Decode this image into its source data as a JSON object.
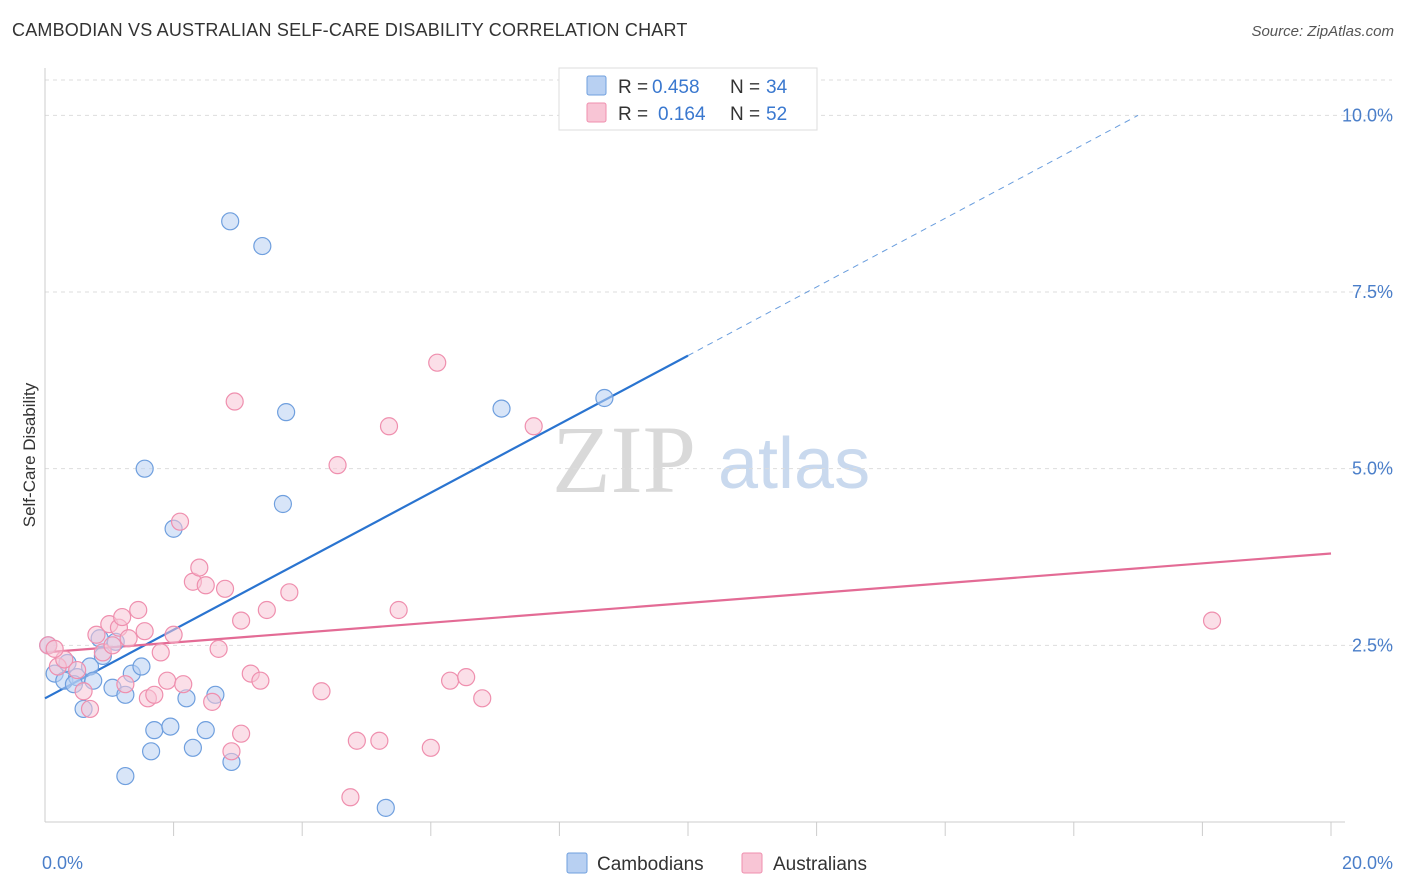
{
  "title": "CAMBODIAN VS AUSTRALIAN SELF-CARE DISABILITY CORRELATION CHART",
  "source": "Source: ZipAtlas.com",
  "watermark": {
    "part1": "ZIP",
    "part2": "atlas"
  },
  "chart_data": {
    "type": "scatter",
    "title": "CAMBODIAN VS AUSTRALIAN SELF-CARE DISABILITY CORRELATION CHART",
    "xlabel": "",
    "ylabel": "Self-Care Disability",
    "xlim": [
      0,
      20
    ],
    "ylim": [
      0,
      10.5
    ],
    "x_tick_labels": [
      {
        "value": 0,
        "label": "0.0%"
      },
      {
        "value": 20,
        "label": "20.0%"
      }
    ],
    "x_minor_ticks": [
      2,
      4,
      6,
      8,
      10,
      12,
      14,
      16,
      18,
      20
    ],
    "y_ticks": [
      {
        "value": 2.5,
        "label": "2.5%"
      },
      {
        "value": 5.0,
        "label": "5.0%"
      },
      {
        "value": 7.5,
        "label": "7.5%"
      },
      {
        "value": 10.0,
        "label": "10.0%"
      }
    ],
    "grid": true,
    "legend_top": [
      {
        "r_label": "R =",
        "r_value": "0.458",
        "n_label": "N =",
        "n_value": "34",
        "color": "#7aa6e0"
      },
      {
        "r_label": "R =",
        "r_value": "0.164",
        "n_label": "N =",
        "n_value": "52",
        "color": "#f29bb6"
      }
    ],
    "series": [
      {
        "name": "Cambodians",
        "color": "#6f9fde",
        "fill": "#b8d0f2",
        "trend": {
          "x0": 0,
          "y0": 1.75,
          "x1": 10,
          "y1": 6.6,
          "dashed_to_x": 17.0,
          "dashed_to_y": 10.0,
          "line_color": "#2a74d0"
        },
        "points": [
          [
            0.05,
            2.5
          ],
          [
            0.15,
            2.1
          ],
          [
            0.35,
            2.25
          ],
          [
            0.3,
            2.0
          ],
          [
            0.5,
            2.05
          ],
          [
            0.45,
            1.95
          ],
          [
            0.6,
            1.6
          ],
          [
            0.7,
            2.2
          ],
          [
            0.75,
            2.0
          ],
          [
            0.85,
            2.6
          ],
          [
            0.9,
            2.35
          ],
          [
            1.05,
            1.9
          ],
          [
            1.1,
            2.55
          ],
          [
            1.25,
            1.8
          ],
          [
            1.35,
            2.1
          ],
          [
            1.5,
            2.2
          ],
          [
            1.25,
            0.65
          ],
          [
            1.7,
            1.3
          ],
          [
            1.65,
            1.0
          ],
          [
            1.95,
            1.35
          ],
          [
            1.55,
            5.0
          ],
          [
            2.0,
            4.15
          ],
          [
            2.2,
            1.75
          ],
          [
            2.3,
            1.05
          ],
          [
            2.5,
            1.3
          ],
          [
            2.65,
            1.8
          ],
          [
            2.9,
            0.85
          ],
          [
            2.88,
            8.5
          ],
          [
            3.38,
            8.15
          ],
          [
            3.75,
            5.8
          ],
          [
            3.7,
            4.5
          ],
          [
            5.3,
            0.2
          ],
          [
            7.1,
            5.85
          ],
          [
            8.7,
            6.0
          ]
        ]
      },
      {
        "name": "Australians",
        "color": "#ef8fae",
        "fill": "#f8c5d5",
        "trend": {
          "x0": 0,
          "y0": 2.4,
          "x1": 20,
          "y1": 3.8,
          "line_color": "#e36b95"
        },
        "points": [
          [
            0.05,
            2.5
          ],
          [
            0.2,
            2.2
          ],
          [
            0.3,
            2.3
          ],
          [
            0.5,
            2.15
          ],
          [
            0.6,
            1.85
          ],
          [
            0.7,
            1.6
          ],
          [
            0.8,
            2.65
          ],
          [
            0.9,
            2.4
          ],
          [
            1.0,
            2.8
          ],
          [
            1.05,
            2.5
          ],
          [
            1.15,
            2.75
          ],
          [
            1.3,
            2.6
          ],
          [
            1.2,
            2.9
          ],
          [
            1.45,
            3.0
          ],
          [
            1.55,
            2.7
          ],
          [
            1.6,
            1.75
          ],
          [
            1.7,
            1.8
          ],
          [
            1.8,
            2.4
          ],
          [
            1.9,
            2.0
          ],
          [
            2.0,
            2.65
          ],
          [
            2.1,
            4.25
          ],
          [
            2.15,
            1.95
          ],
          [
            2.3,
            3.4
          ],
          [
            2.4,
            3.6
          ],
          [
            2.5,
            3.35
          ],
          [
            2.6,
            1.7
          ],
          [
            2.7,
            2.45
          ],
          [
            2.8,
            3.3
          ],
          [
            2.9,
            1.0
          ],
          [
            2.95,
            5.95
          ],
          [
            3.05,
            1.25
          ],
          [
            3.05,
            2.85
          ],
          [
            3.2,
            2.1
          ],
          [
            3.35,
            2.0
          ],
          [
            3.45,
            3.0
          ],
          [
            3.8,
            3.25
          ],
          [
            4.3,
            1.85
          ],
          [
            4.55,
            5.05
          ],
          [
            4.75,
            0.35
          ],
          [
            4.85,
            1.15
          ],
          [
            5.2,
            1.15
          ],
          [
            5.35,
            5.6
          ],
          [
            5.5,
            3.0
          ],
          [
            6.0,
            1.05
          ],
          [
            6.1,
            6.5
          ],
          [
            6.3,
            2.0
          ],
          [
            6.55,
            2.05
          ],
          [
            6.8,
            1.75
          ],
          [
            7.6,
            5.6
          ],
          [
            18.15,
            2.85
          ],
          [
            1.25,
            1.95
          ],
          [
            0.15,
            2.45
          ]
        ]
      }
    ]
  },
  "legend_bottom": [
    {
      "label": "Cambodians"
    },
    {
      "label": "Australians"
    }
  ]
}
